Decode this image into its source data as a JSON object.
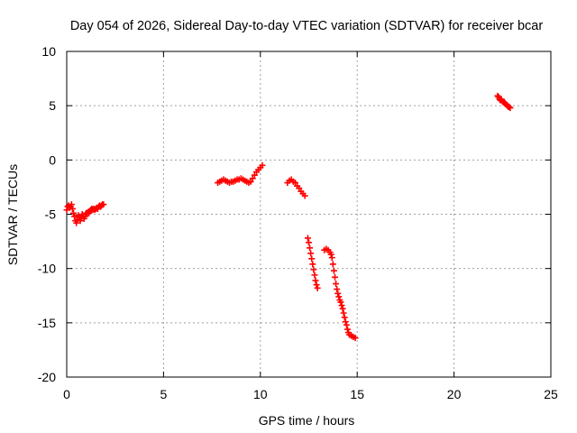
{
  "chart_data": {
    "type": "scatter",
    "title": "Day 054 of 2026, Sidereal Day-to-day VTEC variation (SDTVAR) for receiver bcar",
    "xlabel": "GPS time / hours",
    "ylabel": "SDTVAR / TECUs",
    "xlim": [
      0,
      25
    ],
    "ylim": [
      -20,
      10
    ],
    "xticks": [
      0,
      5,
      10,
      15,
      20,
      25
    ],
    "yticks": [
      -20,
      -15,
      -10,
      -5,
      0,
      5,
      10
    ],
    "grid": true,
    "marker": "plus",
    "series_color": "#ff0000",
    "series": [
      {
        "segments": [
          {
            "x": [
              0.0,
              0.05,
              0.1,
              0.15,
              0.2,
              0.25,
              0.3,
              0.35,
              0.4,
              0.45,
              0.5,
              0.55,
              0.6,
              0.65,
              0.7,
              0.75,
              0.8,
              0.85,
              0.9,
              0.95,
              1.0,
              1.05,
              1.1,
              1.15,
              1.2,
              1.25,
              1.3,
              1.35,
              1.4,
              1.45,
              1.5,
              1.55,
              1.6,
              1.65,
              1.7,
              1.75,
              1.8,
              1.85,
              1.9
            ],
            "y": [
              -4.6,
              -4.3,
              -4.2,
              -4.4,
              -4.3,
              -4.1,
              -4.5,
              -4.9,
              -5.2,
              -5.6,
              -5.8,
              -5.5,
              -5.1,
              -5.3,
              -5.6,
              -5.3,
              -5.0,
              -5.2,
              -5.4,
              -5.2,
              -4.9,
              -4.9,
              -4.8,
              -4.9,
              -4.7,
              -4.6,
              -4.5,
              -4.6,
              -4.5,
              -4.6,
              -4.5,
              -4.4,
              -4.5,
              -4.3,
              -4.2,
              -4.3,
              -4.2,
              -4.1,
              -4.1
            ]
          },
          {
            "x": [
              7.8,
              7.9,
              8.0,
              8.1,
              8.2,
              8.3,
              8.4,
              8.5,
              8.6,
              8.7,
              8.8,
              8.9,
              9.0,
              9.1,
              9.2,
              9.3,
              9.4,
              9.5,
              9.6,
              9.7,
              9.8,
              9.9,
              10.0,
              10.1
            ],
            "y": [
              -2.1,
              -2.0,
              -1.9,
              -1.8,
              -1.9,
              -2.0,
              -2.1,
              -2.0,
              -2.0,
              -1.9,
              -1.8,
              -1.8,
              -1.7,
              -1.8,
              -1.9,
              -2.0,
              -2.1,
              -2.0,
              -1.7,
              -1.4,
              -1.1,
              -0.9,
              -0.7,
              -0.5
            ]
          },
          {
            "x": [
              11.4,
              11.5,
              11.6,
              11.7,
              11.8,
              11.9,
              12.0,
              12.1,
              12.2,
              12.3
            ],
            "y": [
              -2.1,
              -1.9,
              -1.8,
              -2.0,
              -2.1,
              -2.4,
              -2.6,
              -2.9,
              -3.1,
              -3.3
            ]
          },
          {
            "x": [
              12.45,
              12.5,
              12.55,
              12.6,
              12.65,
              12.7,
              12.75,
              12.8,
              12.85,
              12.9,
              12.95
            ],
            "y": [
              -7.2,
              -7.6,
              -8.1,
              -8.6,
              -9.1,
              -9.6,
              -10.1,
              -10.6,
              -11.1,
              -11.5,
              -11.8
            ]
          },
          {
            "x": [
              13.3,
              13.4,
              13.5,
              13.6,
              13.65,
              13.7,
              13.75,
              13.8,
              13.85,
              13.9,
              13.95,
              14.0,
              14.05,
              14.1,
              14.15,
              14.2,
              14.25,
              14.3,
              14.35,
              14.4,
              14.45,
              14.5,
              14.55,
              14.6,
              14.7,
              14.8,
              14.9
            ],
            "y": [
              -8.3,
              -8.2,
              -8.3,
              -8.5,
              -8.7,
              -9.0,
              -9.6,
              -10.2,
              -10.8,
              -11.4,
              -11.9,
              -12.3,
              -12.6,
              -12.9,
              -13.1,
              -13.4,
              -13.7,
              -14.1,
              -14.5,
              -14.9,
              -15.2,
              -15.6,
              -15.9,
              -16.1,
              -16.2,
              -16.3,
              -16.4
            ]
          },
          {
            "x": [
              22.25,
              22.3,
              22.35,
              22.4,
              22.45,
              22.5,
              22.55,
              22.6,
              22.65,
              22.7,
              22.75,
              22.8,
              22.85,
              22.9
            ],
            "y": [
              5.9,
              5.8,
              5.6,
              5.5,
              5.6,
              5.4,
              5.3,
              5.3,
              5.2,
              5.1,
              5.0,
              4.9,
              4.9,
              4.8
            ]
          }
        ]
      }
    ]
  }
}
